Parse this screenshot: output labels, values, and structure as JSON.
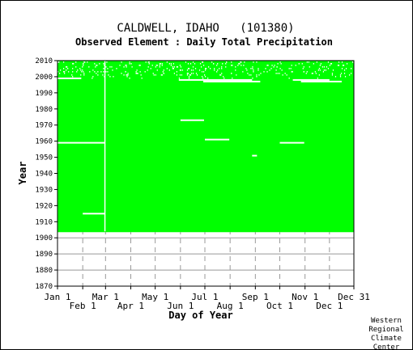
{
  "chart_data": {
    "type": "heatmap",
    "title": "CALDWELL, IDAHO   (101380)",
    "subtitle": "Observed Element : Daily Total Precipitation",
    "xlabel": "Day of Year",
    "ylabel": "Year",
    "x_range_days": [
      1,
      365
    ],
    "ylim": [
      1870,
      2010
    ],
    "y_ticks": [
      2010,
      2000,
      1990,
      1980,
      1970,
      1960,
      1950,
      1940,
      1930,
      1920,
      1910,
      1900,
      1890,
      1880,
      1870
    ],
    "x_ticks_top_row": [
      {
        "label": "Jan 1",
        "day": 1
      },
      {
        "label": "Mar 1",
        "day": 60
      },
      {
        "label": "May 1",
        "day": 121
      },
      {
        "label": "Jul 1",
        "day": 182
      },
      {
        "label": "Sep 1",
        "day": 244
      },
      {
        "label": "Nov 1",
        "day": 305
      },
      {
        "label": "Dec 31",
        "day": 365
      }
    ],
    "x_ticks_bottom_row": [
      {
        "label": "Feb 1",
        "day": 32
      },
      {
        "label": "Apr 1",
        "day": 91
      },
      {
        "label": "Jun 1",
        "day": 152
      },
      {
        "label": "Aug 1",
        "day": 213
      },
      {
        "label": "Oct 1",
        "day": 274
      },
      {
        "label": "Dec 1",
        "day": 335
      }
    ],
    "data_present_color": "#00ff00",
    "missing_color": "#ffffff",
    "grid": true,
    "record_start_year": 1904,
    "record_end_year": 2009,
    "missing_segments": [
      {
        "year": 1999,
        "start_day": 1,
        "end_day": 30
      },
      {
        "year": 1998,
        "start_day": 150,
        "end_day": 240
      },
      {
        "year": 1997,
        "start_day": 180,
        "end_day": 250
      },
      {
        "year": 1998,
        "start_day": 290,
        "end_day": 335
      },
      {
        "year": 1997,
        "start_day": 300,
        "end_day": 350
      },
      {
        "year": 1973,
        "start_day": 152,
        "end_day": 181
      },
      {
        "year": 1961,
        "start_day": 182,
        "end_day": 212
      },
      {
        "year": 1959,
        "start_day": 1,
        "end_day": 59
      },
      {
        "year": 1959,
        "start_day": 274,
        "end_day": 304
      },
      {
        "year": 1951,
        "start_day": 240,
        "end_day": 246
      },
      {
        "year": 1915,
        "start_day": 32,
        "end_day": 59
      }
    ],
    "missing_columns": [
      {
        "day": 59,
        "start_year": 1904,
        "end_year": 2009
      }
    ]
  },
  "credit": [
    "Western",
    "Regional",
    "Climate",
    "Center"
  ]
}
